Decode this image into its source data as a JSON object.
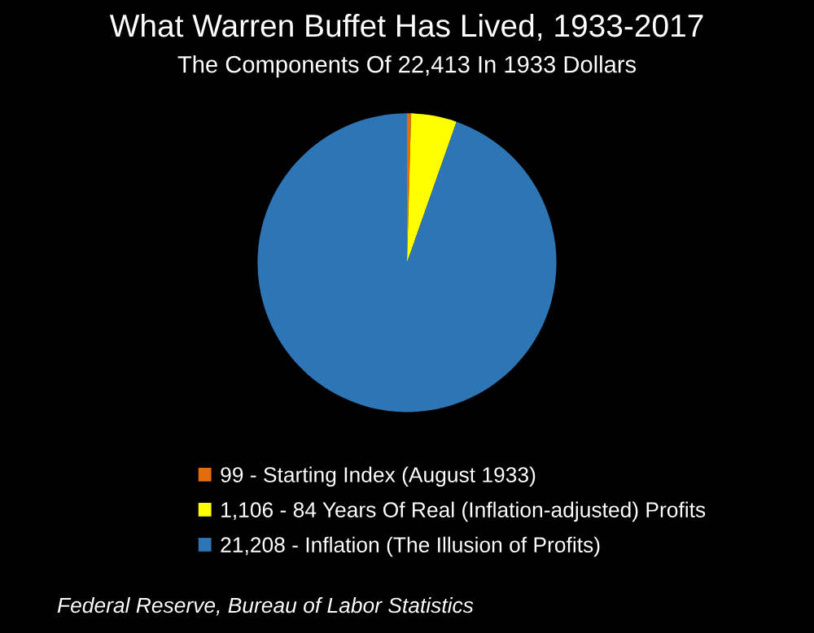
{
  "chart_data": {
    "type": "pie",
    "title": "What Warren Buffet Has Lived, 1933-2017",
    "subtitle": "The Components Of 22,413 In 1933 Dollars",
    "categories": [
      "99 - Starting Index (August 1933)",
      "1,106 - 84 Years Of Real (Inflation-adjusted) Profits",
      "21,208 - Inflation (The Illusion of Profits)"
    ],
    "values": [
      99,
      1106,
      21208
    ],
    "colors": [
      "#e46c0a",
      "#ffff00",
      "#2e75b6"
    ],
    "legend": "bottom",
    "annotations": [
      "Federal Reserve, Bureau of Labor Statistics"
    ]
  }
}
